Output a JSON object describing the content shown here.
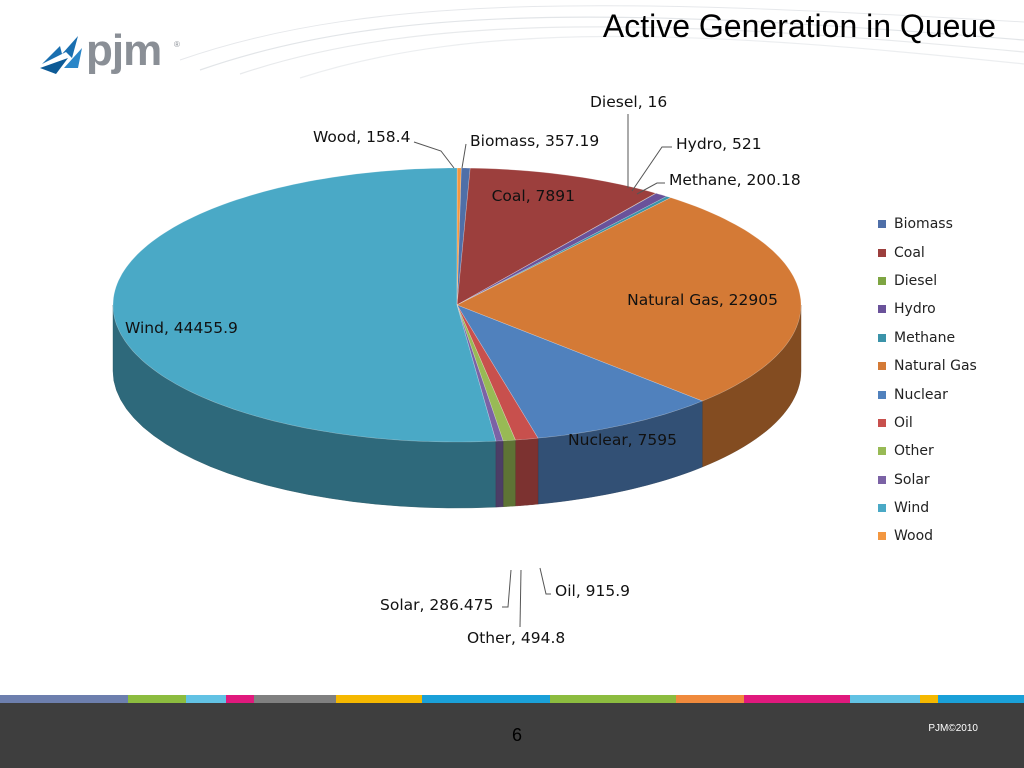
{
  "slide": {
    "title": "Active Generation in Queue",
    "logo_text": "pjm",
    "page_number": "6",
    "copyright": "PJM©2010"
  },
  "footer_band_colors": [
    "#6d7fae",
    "#8cbc3f",
    "#62c2e4",
    "#e0197d",
    "#808080",
    "#f5b800",
    "#1aa0d8",
    "#8cbc3f",
    "#f08a3c",
    "#e0197d",
    "#62c2e4",
    "#f5b800",
    "#1aa0d8"
  ],
  "chart_data": {
    "type": "pie",
    "three_d": true,
    "legend_position": "right",
    "categories": [
      "Biomass",
      "Coal",
      "Diesel",
      "Hydro",
      "Methane",
      "Natural Gas",
      "Nuclear",
      "Oil",
      "Other",
      "Solar",
      "Wind",
      "Wood"
    ],
    "values": [
      357.19,
      7891,
      16,
      521,
      200.18,
      22905,
      7595,
      915.9,
      494.8,
      286.475,
      44455.9,
      158.4
    ],
    "data_labels": [
      "Biomass, 357.19",
      "Coal, 7891",
      "Diesel, 16",
      "Hydro, 521",
      "Methane, 200.18",
      "Natural Gas, 22905",
      "Nuclear, 7595",
      "Oil, 915.9",
      "Other, 494.8",
      "Solar, 286.475",
      "Wind, 44455.9",
      "Wood, 158.4"
    ],
    "colors": [
      "#4f6fa8",
      "#9c3f3d",
      "#7ea542",
      "#6a529a",
      "#3b93a9",
      "#d47a36",
      "#5081bd",
      "#c8504d",
      "#98ba55",
      "#7b62a5",
      "#4aa9c6",
      "#f39740"
    ]
  }
}
